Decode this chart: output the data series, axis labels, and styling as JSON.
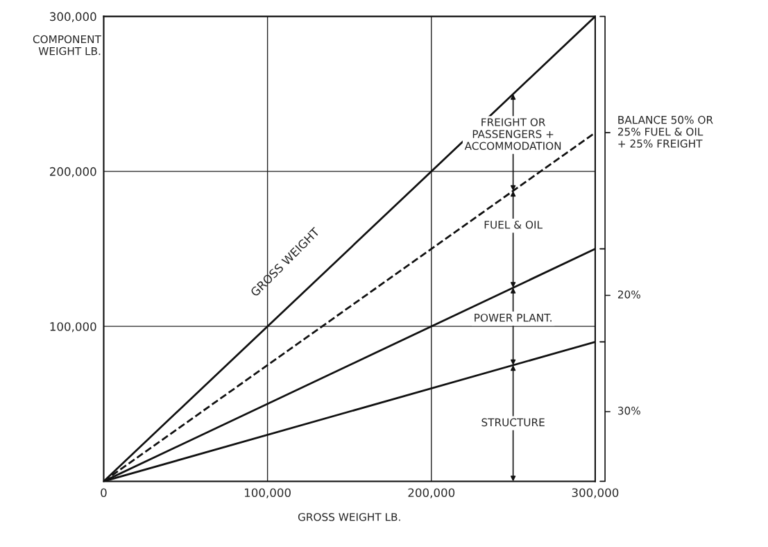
{
  "chart_data": {
    "type": "line",
    "xlabel": "GROSS WEIGHT LB.",
    "ylabel": "COMPONENT\nWEIGHT LB.",
    "x": [
      0,
      300000
    ],
    "series": [
      {
        "color": "#111111",
        "values": [
          0,
          300000
        ]
      },
      {
        "color": "#111111",
        "values": [
          0,
          225000
        ],
        "line_style": "dashed"
      },
      {
        "color": "#111111",
        "values": [
          0,
          150000
        ]
      },
      {
        "color": "#111111",
        "values": [
          0,
          90000
        ]
      }
    ],
    "xlim": [
      0,
      300000
    ],
    "ylim": [
      0,
      300000
    ],
    "xticks": [
      {
        "value": 0,
        "label": "0"
      },
      {
        "value": 100000,
        "label": "100,000"
      },
      {
        "value": 200000,
        "label": "200,000"
      },
      {
        "value": 300000,
        "label": "300,000"
      }
    ],
    "yticks": [
      {
        "value": 0,
        "label": null
      },
      {
        "value": 100000,
        "label": "100,000"
      },
      {
        "value": 200000,
        "label": "200,000"
      },
      {
        "value": 300000,
        "label": "300,000"
      }
    ],
    "grid": true,
    "line_style": "solid",
    "marker": "none",
    "annotations": [
      "GROSS WEIGHT",
      "FREIGHT OR\nPASSENGERS +\nACCOMMODATION",
      "FUEL & OIL",
      "POWER PLANT.",
      "STRUCTURE",
      "BALANCE 50% OR\n25% FUEL & OIL\n+ 25% FREIGHT",
      "20%",
      "30%"
    ]
  }
}
